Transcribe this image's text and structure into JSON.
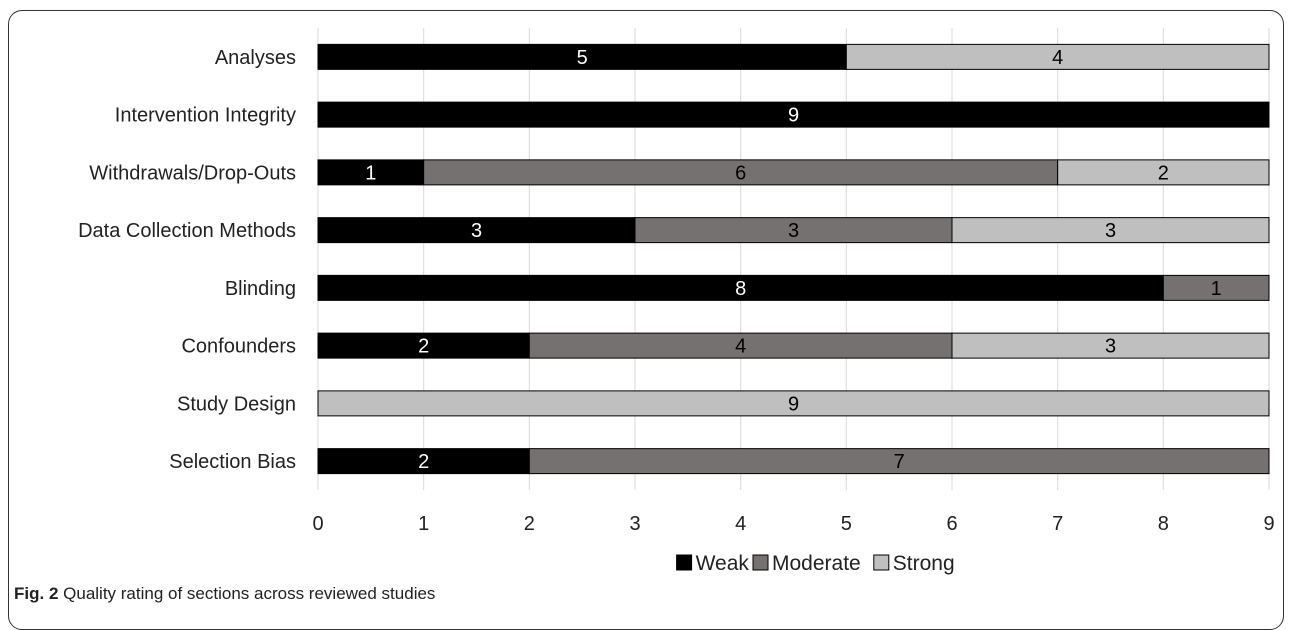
{
  "chart_data": {
    "type": "bar",
    "orientation": "horizontal",
    "stacked": true,
    "categories": [
      "Analyses",
      "Intervention Integrity",
      "Withdrawals/Drop-Outs",
      "Data Collection Methods",
      "Blinding",
      "Confounders",
      "Study Design",
      "Selection Bias"
    ],
    "series": [
      {
        "name": "Weak",
        "color": "#000000",
        "label_color": "#ffffff",
        "values": [
          5,
          9,
          1,
          3,
          8,
          2,
          0,
          2
        ]
      },
      {
        "name": "Moderate",
        "color": "#767171",
        "label_color": "#000000",
        "values": [
          0,
          0,
          6,
          3,
          1,
          4,
          0,
          7
        ]
      },
      {
        "name": "Strong",
        "color": "#bfbfbf",
        "label_color": "#000000",
        "values": [
          4,
          0,
          2,
          3,
          0,
          3,
          9,
          0
        ]
      }
    ],
    "xlim": [
      0,
      9
    ],
    "xticks": [
      "0",
      "1",
      "2",
      "3",
      "4",
      "5",
      "6",
      "7",
      "8",
      "9"
    ],
    "grid": true,
    "legend": "bottom"
  },
  "caption": {
    "fig_label": "Fig. 2",
    "text": "Quality rating of sections across reviewed studies"
  }
}
